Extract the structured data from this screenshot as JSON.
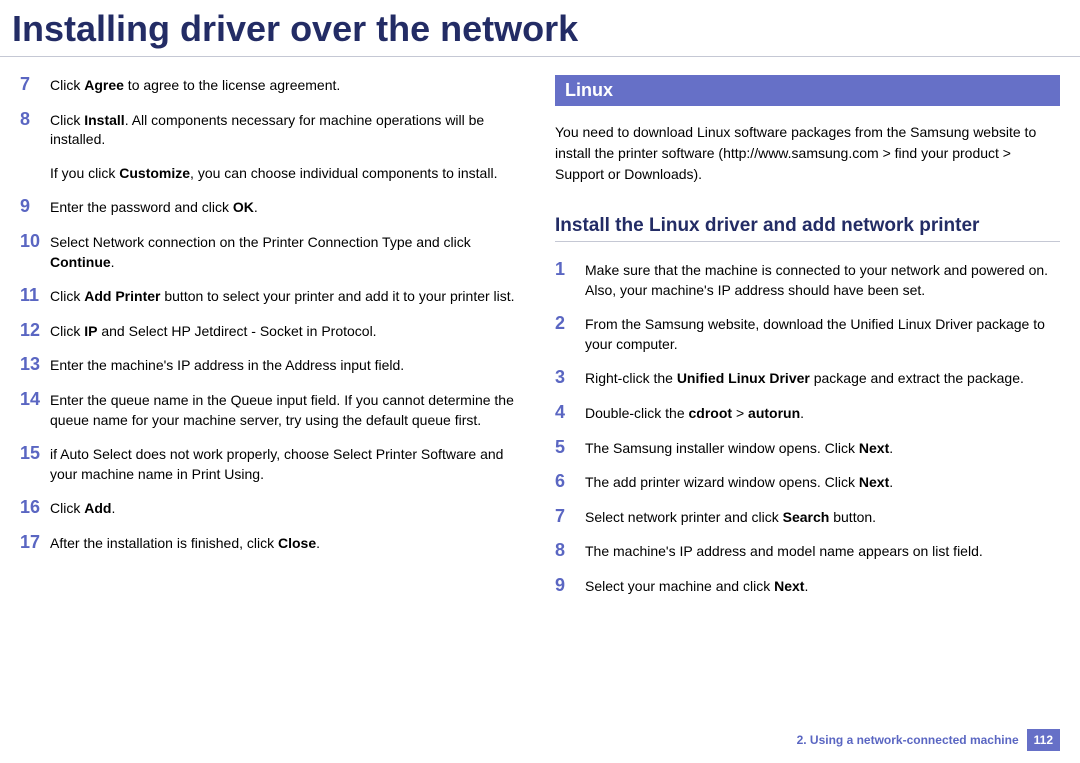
{
  "title": "Installing driver over the network",
  "leftColumn": {
    "steps": [
      {
        "num": "7",
        "html": "Click <b>Agree</b> to agree to the license agreement."
      },
      {
        "num": "8",
        "html": "Click <b>Install</b>. All components necessary for machine operations will be installed."
      },
      {
        "note": true,
        "html": "If you click <b>Customize</b>, you can choose individual components to install."
      },
      {
        "num": "9",
        "html": "Enter the password and click <b>OK</b>."
      },
      {
        "num": "10",
        "html": "Select Network connection on the Printer Connection Type and click <b>Continue</b>."
      },
      {
        "num": "11",
        "html": "Click <b>Add Printer</b> button to select your printer and add it to your printer list."
      },
      {
        "num": "12",
        "html": "Click <b>IP</b> and Select HP Jetdirect - Socket in Protocol."
      },
      {
        "num": "13",
        "html": "Enter the machine's IP address in the Address input field."
      },
      {
        "num": "14",
        "html": "Enter the queue name in the Queue input field. If you cannot determine the queue name for your machine server, try using the default queue first."
      },
      {
        "num": "15",
        "html": "if Auto Select does not work properly, choose Select Printer Software and your machine name in Print Using."
      },
      {
        "num": "16",
        "html": "Click <b>Add</b>."
      },
      {
        "num": "17",
        "html": "After the installation is finished, click <b>Close</b>."
      }
    ]
  },
  "rightColumn": {
    "sectionBar": "Linux",
    "intro": "You need to download Linux software packages from the Samsung website to install the printer software (http://www.samsung.com > find your product > Support or Downloads).",
    "subsectionTitle": "Install the Linux driver and add network printer",
    "steps": [
      {
        "num": "1",
        "html": "Make sure that the machine is connected to your network and powered on. Also, your machine's IP address should have been set."
      },
      {
        "num": "2",
        "html": "From the Samsung website, download the Unified Linux Driver package to your computer."
      },
      {
        "num": "3",
        "html": "Right-click the <b>Unified Linux Driver</b> package and extract the package."
      },
      {
        "num": "4",
        "html": "Double-click the <b>cdroot</b> > <b>autorun</b>."
      },
      {
        "num": "5",
        "html": "The Samsung installer window opens. Click <b>Next</b>."
      },
      {
        "num": "6",
        "html": "The add printer wizard window opens. Click <b>Next</b>."
      },
      {
        "num": "7",
        "html": "Select network printer and click <b>Search</b> button."
      },
      {
        "num": "8",
        "html": "The machine's IP address and model name appears on list field."
      },
      {
        "num": "9",
        "html": "Select your machine and click <b>Next</b>."
      }
    ]
  },
  "footer": {
    "chapter": "2.  Using a network-connected machine",
    "page": "112"
  },
  "colors": {
    "titleColor": "#232c65",
    "accentColor": "#6670c7",
    "stepNumColor": "#5a66c2",
    "ruleColor": "#c5c8d4"
  }
}
